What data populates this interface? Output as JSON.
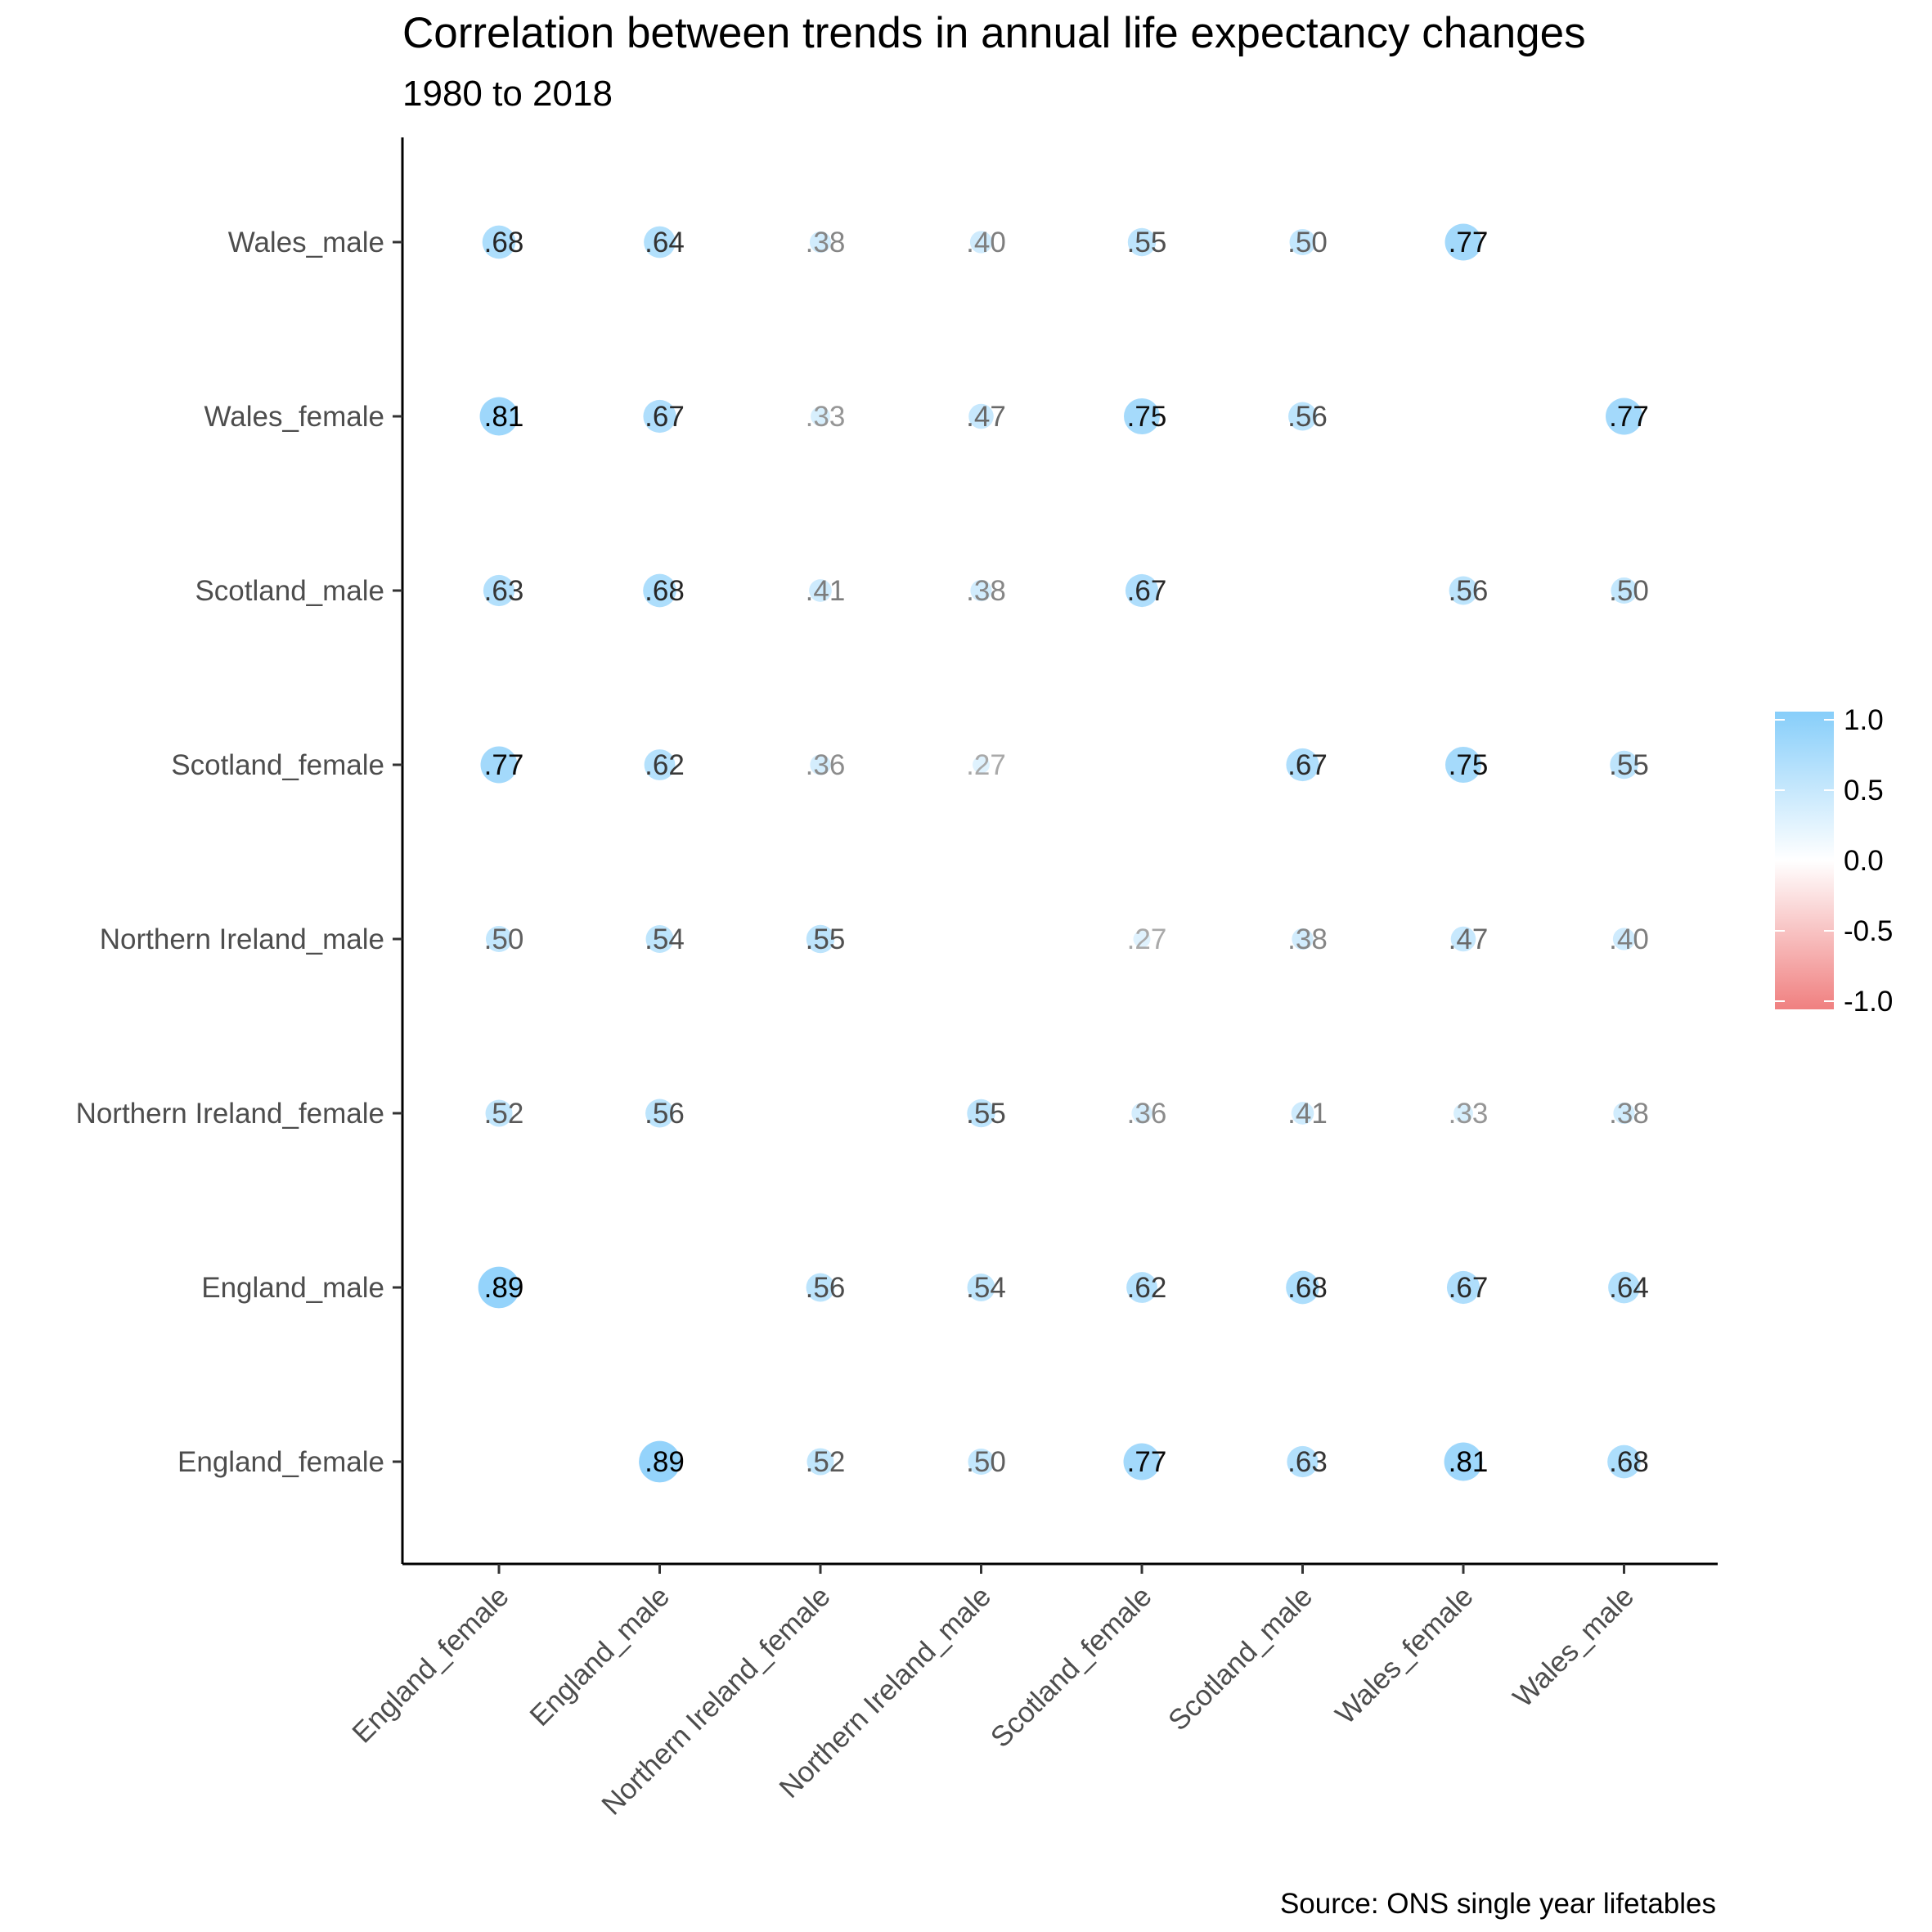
{
  "title": "Correlation between trends in annual life expectancy changes",
  "subtitle": "1980 to 2018",
  "caption": "Source: ONS single year lifetables",
  "chart_data": {
    "type": "heatmap",
    "title": "Correlation between trends in annual life expectancy changes",
    "subtitle": "1980 to 2018",
    "variables": [
      "England_female",
      "England_male",
      "Northern Ireland_female",
      "Northern Ireland_male",
      "Scotland_female",
      "Scotland_male",
      "Wales_female",
      "Wales_male"
    ],
    "matrix": [
      [
        null,
        0.89,
        0.52,
        0.5,
        0.77,
        0.63,
        0.81,
        0.68
      ],
      [
        0.89,
        null,
        0.56,
        0.54,
        0.62,
        0.68,
        0.67,
        0.64
      ],
      [
        0.52,
        0.56,
        null,
        0.55,
        0.36,
        0.41,
        0.33,
        0.38
      ],
      [
        0.5,
        0.54,
        0.55,
        null,
        0.27,
        0.38,
        0.47,
        0.4
      ],
      [
        0.77,
        0.62,
        0.36,
        0.27,
        null,
        0.67,
        0.75,
        0.55
      ],
      [
        0.63,
        0.68,
        0.41,
        0.38,
        0.67,
        null,
        0.56,
        0.5
      ],
      [
        0.81,
        0.67,
        0.33,
        0.47,
        0.75,
        0.56,
        null,
        0.77
      ],
      [
        0.68,
        0.64,
        0.38,
        0.4,
        0.55,
        0.5,
        0.77,
        null
      ]
    ],
    "legend": {
      "placement": "right",
      "ticks": [
        "1.0",
        "0.5",
        "0.0",
        "-0.5",
        "-1.0"
      ],
      "range": [
        -1,
        1
      ],
      "colors": {
        "high": "#87CEFA",
        "mid": "#FFFFFF",
        "low": "#F08080"
      }
    },
    "text_colors": {
      "strong": "#000000",
      "weak": "#BFBFBF"
    },
    "grid": false
  }
}
